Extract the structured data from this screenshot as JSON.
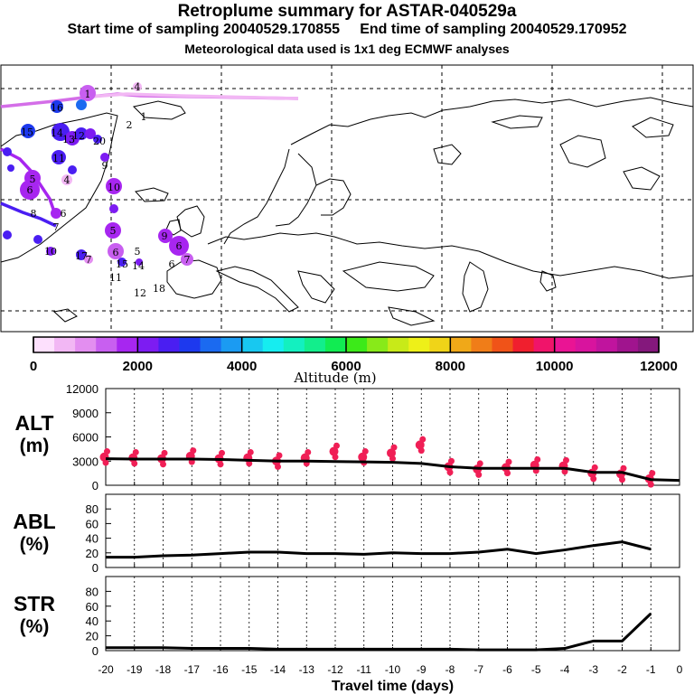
{
  "header": {
    "title": "Retroplume summary for ASTAR-040529a",
    "start_label": "Start time of sampling 20040529.170855",
    "end_label": "End time of sampling 20040529.170952",
    "met_label": "Meteorological data used is 1x1 deg ECMWF analyses"
  },
  "colorbar": {
    "title": "Altitude (m)",
    "tick_labels": [
      "0",
      "2000",
      "4000",
      "6000",
      "8000",
      "10000",
      "12000"
    ],
    "colors": [
      "#fde0fd",
      "#f2b7f4",
      "#e38ef0",
      "#c85ff0",
      "#a726f0",
      "#7d1cf2",
      "#4a1ef2",
      "#1d39ee",
      "#1b6af0",
      "#1b9bf2",
      "#18c8f0",
      "#16edf0",
      "#13f0c0",
      "#12ee8c",
      "#11ec52",
      "#3cea19",
      "#88ea19",
      "#c8ea18",
      "#eef018",
      "#f0d418",
      "#f0a818",
      "#f07d18",
      "#f05318",
      "#f01f2e",
      "#f0146a",
      "#ea1494",
      "#d8149e",
      "#c0149e",
      "#a0148e",
      "#84187c"
    ]
  },
  "map": {
    "labels": [
      {
        "t": "1",
        "lon": -34,
        "lat": 77
      },
      {
        "t": "4",
        "lon": -27,
        "lat": 78
      },
      {
        "t": "2",
        "lon": -24,
        "lat": 73
      },
      {
        "t": "1",
        "lon": -22,
        "lat": 74
      },
      {
        "t": "16",
        "lon": -40,
        "lat": 75
      },
      {
        "t": "15",
        "lon": -46,
        "lat": 70
      },
      {
        "t": "14",
        "lon": -38,
        "lat": 70
      },
      {
        "t": "13",
        "lon": -36,
        "lat": 69
      },
      {
        "t": "12",
        "lon": -34,
        "lat": 69
      },
      {
        "t": "20",
        "lon": -33,
        "lat": 68
      },
      {
        "t": "11",
        "lon": -39,
        "lat": 66
      },
      {
        "t": "9",
        "lon": -36,
        "lat": 64
      },
      {
        "t": "5",
        "lon": -45,
        "lat": 62
      },
      {
        "t": "6",
        "lon": -46,
        "lat": 60
      },
      {
        "t": "4",
        "lon": -38,
        "lat": 61
      },
      {
        "t": "10",
        "lon": -27,
        "lat": 60
      },
      {
        "t": "8",
        "lon": -44,
        "lat": 56
      },
      {
        "t": "7",
        "lon": -38,
        "lat": 54
      },
      {
        "t": "6",
        "lon": -36,
        "lat": 56
      },
      {
        "t": "5",
        "lon": -27,
        "lat": 52
      },
      {
        "t": "9",
        "lon": -16,
        "lat": 52
      },
      {
        "t": "6",
        "lon": -14,
        "lat": 51
      },
      {
        "t": "7",
        "lon": -13,
        "lat": 49
      },
      {
        "t": "6",
        "lon": -27,
        "lat": 49
      },
      {
        "t": "15",
        "lon": -26,
        "lat": 48
      },
      {
        "t": "5",
        "lon": -22,
        "lat": 49
      },
      {
        "t": "14",
        "lon": -21,
        "lat": 48
      },
      {
        "t": "6",
        "lon": -15,
        "lat": 48
      },
      {
        "t": "11",
        "lon": -27,
        "lat": 46
      },
      {
        "t": "12",
        "lon": -21,
        "lat": 44
      },
      {
        "t": "18",
        "lon": -18,
        "lat": 44
      },
      {
        "t": "10",
        "lon": -39,
        "lat": 49
      },
      {
        "t": "17",
        "lon": -35,
        "lat": 48
      },
      {
        "t": "7",
        "lon": -34,
        "lat": 48
      }
    ]
  },
  "chart_data": [
    {
      "type": "line",
      "panel": "ALT",
      "ylabel_lines": [
        "ALT",
        "(m)"
      ],
      "ylim": [
        0,
        12000
      ],
      "yticks": [
        "0",
        "3000",
        "6000",
        "9000",
        "12000"
      ],
      "x": [
        -20,
        -19,
        -18,
        -17,
        -16,
        -15,
        -14,
        -13,
        -12,
        -11,
        -10,
        -9,
        -8,
        -7,
        -6,
        -5,
        -4,
        -3,
        -2,
        -1,
        0
      ],
      "values": [
        3300,
        3250,
        3250,
        3250,
        3200,
        3100,
        3000,
        3000,
        2950,
        2900,
        2850,
        2700,
        2300,
        2100,
        2100,
        2100,
        2100,
        1600,
        1600,
        700,
        600
      ],
      "scatter_values": [
        3500,
        3400,
        3300,
        3600,
        3300,
        3400,
        3000,
        3400,
        4200,
        3500,
        4000,
        5000,
        2300,
        2000,
        2200,
        2500,
        2400,
        1500,
        1400,
        800
      ]
    },
    {
      "type": "line",
      "panel": "ABL",
      "ylabel_lines": [
        "ABL",
        "(%)"
      ],
      "ylim": [
        0,
        100
      ],
      "yticks": [
        "0",
        "20",
        "40",
        "60",
        "80"
      ],
      "x": [
        -20,
        -19,
        -18,
        -17,
        -16,
        -15,
        -14,
        -13,
        -12,
        -11,
        -10,
        -9,
        -8,
        -7,
        -6,
        -5,
        -4,
        -3,
        -2,
        -1
      ],
      "values": [
        14,
        14,
        16,
        17,
        19,
        21,
        21,
        19,
        19,
        18,
        20,
        19,
        19,
        21,
        25,
        19,
        24,
        30,
        35,
        25
      ]
    },
    {
      "type": "line",
      "panel": "STR",
      "ylabel_lines": [
        "STR",
        "(%)"
      ],
      "ylim": [
        0,
        100
      ],
      "yticks": [
        "0",
        "20",
        "40",
        "60",
        "80"
      ],
      "x": [
        -20,
        -19,
        -18,
        -17,
        -16,
        -15,
        -14,
        -13,
        -12,
        -11,
        -10,
        -9,
        -8,
        -7,
        -6,
        -5,
        -4,
        -3,
        -2,
        -1
      ],
      "values": [
        4,
        4,
        4,
        3,
        3,
        3,
        2,
        2,
        2,
        2,
        2,
        2,
        2,
        1,
        1,
        1,
        3,
        13,
        13,
        50
      ]
    }
  ],
  "xaxis": {
    "label": "Travel time (days)",
    "ticks": [
      "-20",
      "-19",
      "-18",
      "-17",
      "-16",
      "-15",
      "-14",
      "-13",
      "-12",
      "-11",
      "-10",
      "-9",
      "-8",
      "-7",
      "-6",
      "-5",
      "-4",
      "-3",
      "-2",
      "-1",
      "0"
    ]
  }
}
